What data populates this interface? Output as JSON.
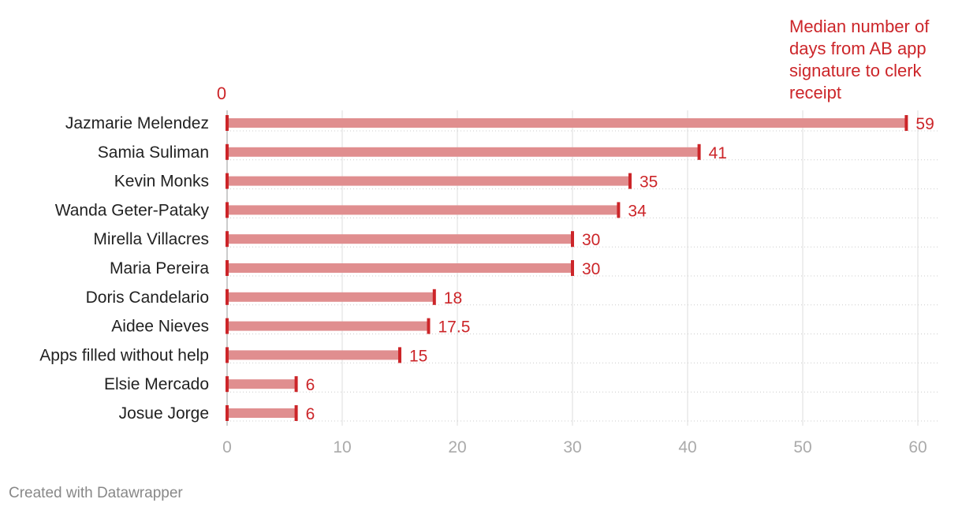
{
  "chart_data": {
    "type": "bar",
    "orientation": "horizontal",
    "categories": [
      "Jazmarie Melendez",
      "Samia Suliman",
      "Kevin Monks",
      "Wanda Geter-Pataky",
      "Mirella Villacres",
      "Maria Pereira",
      "Doris Candelario",
      "Aidee Nieves",
      "Apps filled without help",
      "Elsie Mercado",
      "Josue Jorge"
    ],
    "series": [
      {
        "name": "Median number of days from AB app signature to clerk receipt",
        "values": [
          59,
          41,
          35,
          34,
          30,
          30,
          18,
          17.5,
          15,
          6,
          6
        ],
        "data_labels": [
          "59",
          "41",
          "35",
          "34",
          "30",
          "30",
          "18",
          "17.5",
          "15",
          "6",
          "6"
        ]
      }
    ],
    "series_start_label": "0",
    "series_label_lines": [
      "Median number of",
      "days from AB app",
      "signature to clerk",
      "receipt"
    ],
    "x_ticks": [
      "0",
      "10",
      "20",
      "30",
      "40",
      "50",
      "60"
    ],
    "xlim": [
      0,
      60
    ],
    "grid": true,
    "colors": {
      "accent": "#cc2529",
      "bar": "#e08e8f"
    }
  },
  "footer": {
    "credit": "Created with Datawrapper"
  }
}
